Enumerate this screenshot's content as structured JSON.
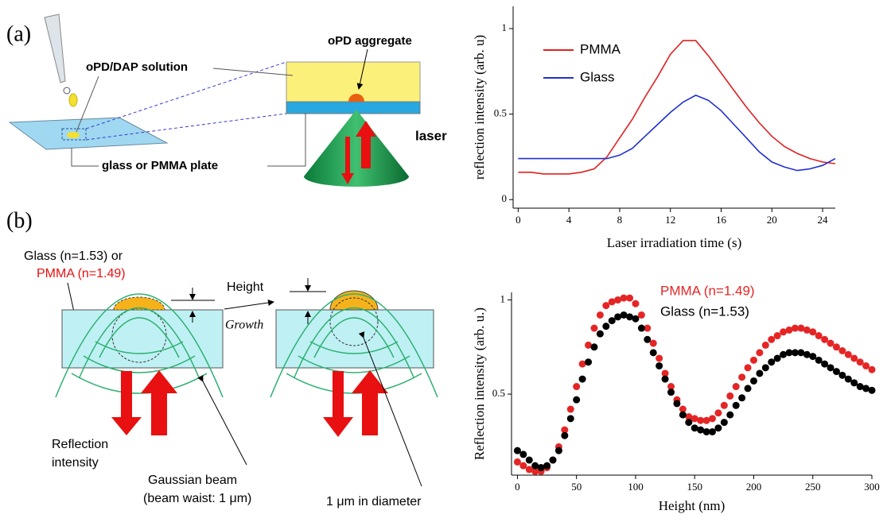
{
  "panel_a": {
    "label": "(a)",
    "aggregate_label": "oPD aggregate",
    "solution_label": "oPD/DAP solution",
    "laser_label": "laser",
    "plate_label": "glass or PMMA plate"
  },
  "panel_b": {
    "label": "(b)",
    "glass_label": "Glass (n=1.53) or",
    "pmma_label": "PMMA (n=1.49)",
    "height_label": "Height",
    "growth_label": "Growth",
    "reflection_label": [
      "Reflection",
      "intensity"
    ],
    "beam_label": [
      "Gaussian beam",
      "(beam waist: 1 μm)"
    ],
    "diameter_label": "1 μm in diameter"
  },
  "chart_data": [
    {
      "type": "line",
      "xlabel": "Laser irradiation time (s)",
      "ylabel": "reflection  intensity (arb. u)",
      "x": [
        0,
        1,
        2,
        3,
        4,
        5,
        6,
        7,
        8,
        9,
        10,
        11,
        12,
        13,
        14,
        15,
        16,
        17,
        18,
        19,
        20,
        21,
        22,
        23,
        24,
        25
      ],
      "series": [
        {
          "name": "PMMA",
          "color": "#e02020",
          "values": [
            0.16,
            0.16,
            0.15,
            0.15,
            0.15,
            0.16,
            0.18,
            0.25,
            0.36,
            0.47,
            0.6,
            0.72,
            0.85,
            0.93,
            0.93,
            0.84,
            0.74,
            0.64,
            0.54,
            0.45,
            0.37,
            0.31,
            0.27,
            0.24,
            0.22,
            0.21
          ]
        },
        {
          "name": "Glass",
          "color": "#2030d0",
          "values": [
            0.24,
            0.24,
            0.24,
            0.24,
            0.24,
            0.24,
            0.24,
            0.24,
            0.26,
            0.3,
            0.37,
            0.44,
            0.51,
            0.57,
            0.61,
            0.58,
            0.52,
            0.44,
            0.36,
            0.28,
            0.22,
            0.19,
            0.17,
            0.18,
            0.2,
            0.24
          ]
        }
      ],
      "xlim": [
        -0.4,
        25
      ],
      "ylim": [
        -0.05,
        1.13
      ],
      "xticks": [
        0,
        4,
        8,
        12,
        16,
        20,
        24
      ],
      "yticks": [
        0,
        0.5,
        1
      ]
    },
    {
      "type": "scatter",
      "xlabel": "Height (nm)",
      "ylabel": "Reflection intensity (arb. u.)",
      "x": [
        0,
        5,
        10,
        15,
        20,
        25,
        30,
        35,
        40,
        45,
        50,
        55,
        60,
        65,
        70,
        75,
        80,
        85,
        90,
        95,
        100,
        105,
        110,
        115,
        120,
        125,
        130,
        135,
        140,
        145,
        150,
        155,
        160,
        165,
        170,
        175,
        180,
        185,
        190,
        195,
        200,
        205,
        210,
        215,
        220,
        225,
        230,
        235,
        240,
        245,
        250,
        255,
        260,
        265,
        270,
        275,
        280,
        285,
        290,
        295,
        300
      ],
      "series": [
        {
          "name": "PMMA (n=1.49)",
          "color": "#e52525",
          "values": [
            0.14,
            0.12,
            0.1,
            0.09,
            0.09,
            0.11,
            0.15,
            0.22,
            0.31,
            0.42,
            0.54,
            0.66,
            0.76,
            0.85,
            0.92,
            0.97,
            0.99,
            1.0,
            1.01,
            1.01,
            0.98,
            0.92,
            0.85,
            0.77,
            0.69,
            0.61,
            0.54,
            0.47,
            0.42,
            0.38,
            0.37,
            0.36,
            0.36,
            0.37,
            0.4,
            0.44,
            0.49,
            0.54,
            0.59,
            0.64,
            0.68,
            0.72,
            0.76,
            0.79,
            0.81,
            0.83,
            0.84,
            0.85,
            0.85,
            0.84,
            0.83,
            0.81,
            0.79,
            0.77,
            0.75,
            0.73,
            0.71,
            0.69,
            0.67,
            0.65,
            0.63
          ]
        },
        {
          "name": "Glass (n=1.53)",
          "color": "#000000",
          "values": [
            0.2,
            0.18,
            0.15,
            0.12,
            0.11,
            0.12,
            0.15,
            0.2,
            0.28,
            0.37,
            0.47,
            0.58,
            0.67,
            0.75,
            0.82,
            0.86,
            0.89,
            0.91,
            0.92,
            0.91,
            0.9,
            0.85,
            0.79,
            0.72,
            0.65,
            0.58,
            0.51,
            0.45,
            0.39,
            0.35,
            0.32,
            0.31,
            0.3,
            0.3,
            0.32,
            0.35,
            0.39,
            0.44,
            0.48,
            0.53,
            0.57,
            0.61,
            0.64,
            0.67,
            0.69,
            0.71,
            0.72,
            0.72,
            0.72,
            0.71,
            0.7,
            0.68,
            0.66,
            0.64,
            0.62,
            0.6,
            0.58,
            0.56,
            0.54,
            0.53,
            0.52
          ]
        }
      ],
      "xlim": [
        -5,
        300
      ],
      "ylim": [
        0.07,
        1.04
      ],
      "xticks": [
        0,
        50,
        100,
        150,
        200,
        250,
        300
      ],
      "yticks": [
        0.5,
        1
      ]
    }
  ]
}
